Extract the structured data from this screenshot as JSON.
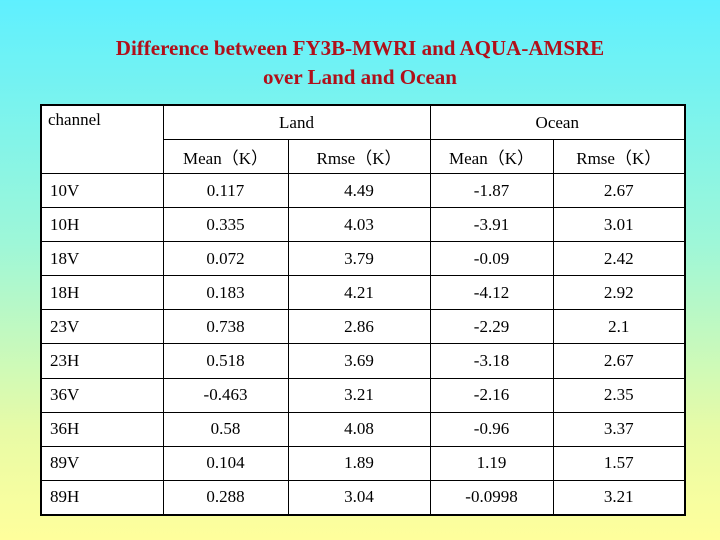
{
  "title": {
    "line1": "Difference between FY3B-MWRI and AQUA-AMSRE",
    "line2": "over Land and Ocean"
  },
  "table": {
    "channel_header": "channel",
    "land_header": "Land",
    "ocean_header": "Ocean",
    "land_mean_header": "Mean（K）",
    "land_rmse_header": "Rmse（K）",
    "ocean_mean_header": "Mean（K）",
    "ocean_rmse_header": "Rmse（K）",
    "rows": [
      {
        "channel": "10V",
        "land_mean": "0.117",
        "land_rmse": "4.49",
        "ocean_mean": "-1.87",
        "ocean_rmse": "2.67"
      },
      {
        "channel": "10H",
        "land_mean": "0.335",
        "land_rmse": "4.03",
        "ocean_mean": "-3.91",
        "ocean_rmse": "3.01"
      },
      {
        "channel": "18V",
        "land_mean": "0.072",
        "land_rmse": "3.79",
        "ocean_mean": "-0.09",
        "ocean_rmse": "2.42"
      },
      {
        "channel": "18H",
        "land_mean": "0.183",
        "land_rmse": "4.21",
        "ocean_mean": "-4.12",
        "ocean_rmse": "2.92"
      },
      {
        "channel": "23V",
        "land_mean": "0.738",
        "land_rmse": "2.86",
        "ocean_mean": "-2.29",
        "ocean_rmse": "2.1"
      },
      {
        "channel": "23H",
        "land_mean": "0.518",
        "land_rmse": "3.69",
        "ocean_mean": "-3.18",
        "ocean_rmse": "2.67"
      },
      {
        "channel": "36V",
        "land_mean": "-0.463",
        "land_rmse": "3.21",
        "ocean_mean": "-2.16",
        "ocean_rmse": "2.35"
      },
      {
        "channel": "36H",
        "land_mean": "0.58",
        "land_rmse": "4.08",
        "ocean_mean": "-0.96",
        "ocean_rmse": "3.37"
      },
      {
        "channel": "89V",
        "land_mean": "0.104",
        "land_rmse": "1.89",
        "ocean_mean": "1.19",
        "ocean_rmse": "1.57"
      },
      {
        "channel": "89H",
        "land_mean": "0.288",
        "land_rmse": "3.04",
        "ocean_mean": "-0.0998",
        "ocean_rmse": "3.21"
      }
    ]
  }
}
